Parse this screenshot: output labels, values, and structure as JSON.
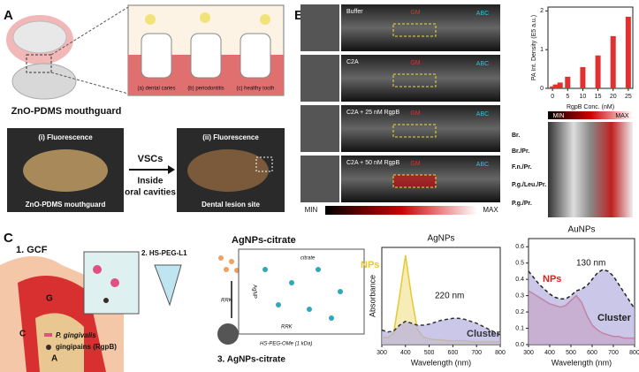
{
  "panel_a": {
    "label": "A",
    "mouthguard_title": "ZnO-PDMS mouthguard",
    "conditions": [
      "(a) dental caries",
      "(b) periodontitis",
      "(c) healthy tooth"
    ],
    "photo_left": {
      "title": "(i) Fluorescence",
      "caption": "ZnO-PDMS mouthguard"
    },
    "arrow_top": "VSCs",
    "arrow_bottom": [
      "Inside",
      "oral cavities"
    ],
    "photo_right": {
      "title": "(ii) Fluorescence",
      "caption": "Dental lesion site"
    }
  },
  "panel_b": {
    "label": "B",
    "frames": [
      "Buffer",
      "C2A",
      "C2A + 25 nM RgpB",
      "C2A + 50 nM RgpB"
    ],
    "gm": "GM",
    "abc": "ABC",
    "scale_min": "MIN",
    "scale_max": "MAX",
    "strips": [
      "Br.",
      "Br./Pr.",
      "F.n./Pr.",
      "P.g./Leu./Pr.",
      "P.g./Pr."
    ]
  },
  "panel_c": {
    "label": "C",
    "step1": "1. GCF",
    "step2": "2. HS-PEG-L1",
    "step3": "3. AgNPs-citrate",
    "agnps": "AgNPs-citrate",
    "citrate": "citrate",
    "rrk": "RRK",
    "peg": "HS-PEG-OMe (1 kDa)",
    "agnp_side": "AgNP",
    "tissue": [
      "G",
      "C",
      "A"
    ],
    "legend": [
      "P. gingivalis",
      "gingipains (RgpB)"
    ]
  },
  "chart_data": [
    {
      "type": "bar",
      "y_label": "PA Int. Density (E5 a.u.)",
      "x_label": "RgpB Conc. (nM)",
      "x": [
        0,
        1,
        2.5,
        5,
        10,
        15,
        20,
        25
      ],
      "values": [
        0.05,
        0.1,
        0.15,
        0.3,
        0.55,
        0.85,
        1.35,
        1.85
      ],
      "color": "#e03030",
      "xlim": [
        -1.5,
        26.5
      ],
      "xticks": [
        0,
        5,
        10,
        15,
        20,
        25
      ],
      "ylim": [
        0,
        2.1
      ],
      "yticks": [
        0,
        1,
        2
      ]
    },
    {
      "type": "line",
      "title": "AgNPs",
      "x_label": "Wavelength (nm)",
      "y_label": "Absorbance",
      "annotations": [
        "220 nm"
      ],
      "xlim": [
        300,
        800
      ],
      "xticks": [
        300,
        400,
        500,
        600,
        700,
        800
      ],
      "ylim": [
        0,
        1
      ],
      "x": [
        300,
        325,
        350,
        375,
        400,
        425,
        450,
        475,
        500,
        525,
        550,
        575,
        600,
        625,
        650,
        675,
        700,
        725,
        750,
        775,
        800
      ],
      "series": [
        {
          "name": "NPs",
          "color": "#e6c830",
          "values": [
            0.08,
            0.07,
            0.12,
            0.5,
            0.92,
            0.5,
            0.16,
            0.08,
            0.06,
            0.05,
            0.05,
            0.04,
            0.04,
            0.04,
            0.04,
            0.03,
            0.03,
            0.03,
            0.03,
            0.03,
            0.03
          ]
        },
        {
          "name": "Cluster",
          "color": "#333333",
          "fill": "#b5afe0",
          "dashed": true,
          "values": [
            0.15,
            0.13,
            0.14,
            0.2,
            0.24,
            0.22,
            0.2,
            0.2,
            0.21,
            0.23,
            0.25,
            0.26,
            0.27,
            0.27,
            0.26,
            0.24,
            0.22,
            0.19,
            0.16,
            0.13,
            0.1
          ]
        }
      ]
    },
    {
      "type": "line",
      "title": "AuNPs",
      "x_label": "Wavelength (nm)",
      "annotations": [
        "130 nm"
      ],
      "xlim": [
        300,
        800
      ],
      "xticks": [
        300,
        400,
        500,
        600,
        700,
        800
      ],
      "ylim": [
        0,
        0.65
      ],
      "yticks": [
        {
          "value": 0,
          "label": "0.0"
        },
        0.1,
        0.2,
        0.3,
        0.4,
        0.5,
        0.6
      ],
      "x": [
        300,
        325,
        350,
        375,
        400,
        425,
        450,
        475,
        500,
        525,
        550,
        575,
        600,
        625,
        650,
        675,
        700,
        725,
        750,
        775,
        800
      ],
      "series": [
        {
          "name": "NPs",
          "color": "#e02020",
          "values": [
            0.33,
            0.31,
            0.29,
            0.27,
            0.25,
            0.24,
            0.23,
            0.24,
            0.27,
            0.3,
            0.26,
            0.18,
            0.12,
            0.09,
            0.07,
            0.06,
            0.05,
            0.05,
            0.04,
            0.04,
            0.04
          ]
        },
        {
          "name": "Cluster",
          "color": "#222222",
          "fill": "#b5afe0",
          "dashed": true,
          "values": [
            0.45,
            0.41,
            0.37,
            0.34,
            0.31,
            0.29,
            0.28,
            0.28,
            0.3,
            0.33,
            0.34,
            0.36,
            0.4,
            0.44,
            0.46,
            0.45,
            0.42,
            0.37,
            0.32,
            0.27,
            0.22
          ]
        }
      ]
    }
  ]
}
